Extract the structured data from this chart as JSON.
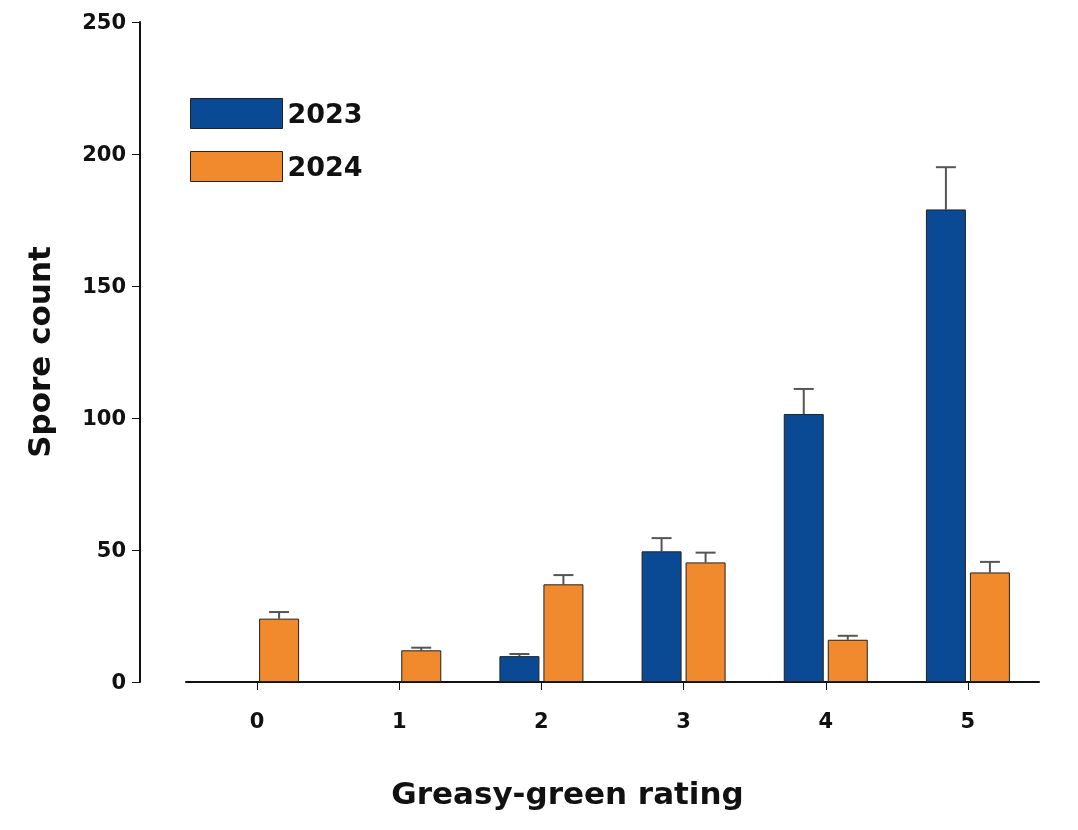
{
  "chart_data": {
    "type": "bar",
    "xlabel": "Greasy-green rating",
    "ylabel": "Spore count",
    "categories": [
      "0",
      "1",
      "2",
      "3",
      "4",
      "5"
    ],
    "series": [
      {
        "name": "2023",
        "color": "#0a4a94",
        "values": [
          null,
          null,
          9.8,
          49.5,
          101.5,
          179
        ],
        "errors": [
          null,
          null,
          [
            9.8,
            10.6
          ],
          [
            49.5,
            54.5
          ],
          [
            101.5,
            111
          ],
          [
            179,
            195
          ]
        ]
      },
      {
        "name": "2024",
        "color": "#f08a2c",
        "values": [
          24,
          12,
          37,
          45.3,
          16,
          41.5
        ],
        "errors": [
          [
            24,
            26.5
          ],
          [
            12,
            13
          ],
          [
            37,
            40.5
          ],
          [
            45.3,
            49
          ],
          [
            16,
            17.5
          ],
          [
            41.5,
            45.5
          ]
        ]
      }
    ],
    "ylim": [
      0,
      250
    ],
    "yticks": [
      0,
      50,
      100,
      150,
      200,
      250
    ],
    "grid": false,
    "legend": "top left"
  }
}
